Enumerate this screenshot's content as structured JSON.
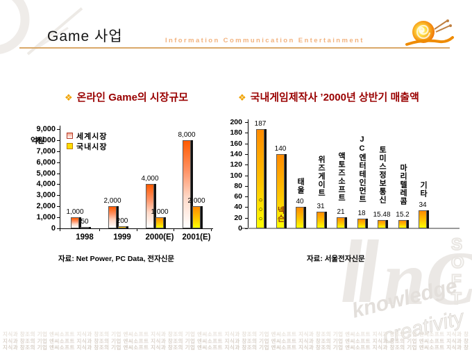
{
  "header": {
    "title": "Game 사업",
    "subtitle": "Information  Communication  Entertainment"
  },
  "icons": {
    "header_logo": "snail-icon",
    "title_bullet": "diamond-icon",
    "watermark_topleft": "snail-outline-icon"
  },
  "left_section": {
    "bullet": "❖",
    "title": "온라인 Game의 시장규모",
    "unit_label": "억원",
    "source": "자료: Net Power, PC Data, 전자신문"
  },
  "right_section": {
    "bullet": "❖",
    "title": "국내게임제작사 ’2000년 상반기 매출액",
    "source": "자료: 서울전자신문"
  },
  "chart_data": [
    {
      "type": "bar",
      "title": "온라인 Game의 시장규모",
      "ylabel": "억원",
      "categories": [
        "1998",
        "1999",
        "2000(E)",
        "2001(E)"
      ],
      "series": [
        {
          "name": "세계시장",
          "values": [
            1000,
            2000,
            4000,
            8000
          ],
          "labels": [
            "1,000",
            "2,000",
            "4,000",
            "8,000"
          ],
          "color_top": "#ff5a00",
          "color_bottom": "#ffffff"
        },
        {
          "name": "국내시장",
          "values": [
            50,
            200,
            1000,
            2000
          ],
          "labels": [
            "50",
            "200",
            "1,000",
            "2,000"
          ],
          "color_top": "#ff8b00",
          "color_bottom": "#ffff00"
        }
      ],
      "ylim": [
        0,
        9000
      ],
      "ytick_step": 1000,
      "grid": false,
      "legend_position": "top-left-inside",
      "source": "자료: Net Power, PC Data, 전자신문"
    },
    {
      "type": "bar",
      "title": "국내게임제작사 ’2000년 상반기 매출액",
      "categories": [
        "○○○",
        "넥슨",
        "태울",
        "위즈게이트",
        "액토즈소프트",
        "JC엔터테인먼트",
        "토미스정보통신",
        "마리텔레콤",
        "기타"
      ],
      "values": [
        187,
        140,
        40,
        31,
        21,
        18,
        15.48,
        15.2,
        34
      ],
      "value_labels": [
        "187",
        "140",
        "40",
        "31",
        "21",
        "18",
        "15.48",
        "15.2",
        "34"
      ],
      "label_placement": [
        "inside",
        "inside",
        "above",
        "above",
        "above",
        "above",
        "above",
        "above",
        "above"
      ],
      "ylim": [
        0,
        200
      ],
      "ytick_step": 20,
      "grid": false,
      "source": "자료: 서울전자신문"
    }
  ],
  "watermark": {
    "brand": "nC",
    "soft_letters": [
      "S",
      "O",
      "F",
      "T"
    ],
    "word1": "knowledge",
    "word2": "creativity"
  },
  "footer": {
    "repeat_text": "지식과 창조의 기업 엔씨소프트"
  },
  "colors": {
    "section_title": "#990000",
    "header_line": "#d9a869",
    "subtitle": "#f2b27d",
    "world_bar_top": "#ff5a00",
    "domestic_bar_top": "#ff8b00",
    "domestic_bar_bottom": "#ffff00",
    "bar_shadow": "#111111",
    "nexon_label": "#8b3300"
  }
}
